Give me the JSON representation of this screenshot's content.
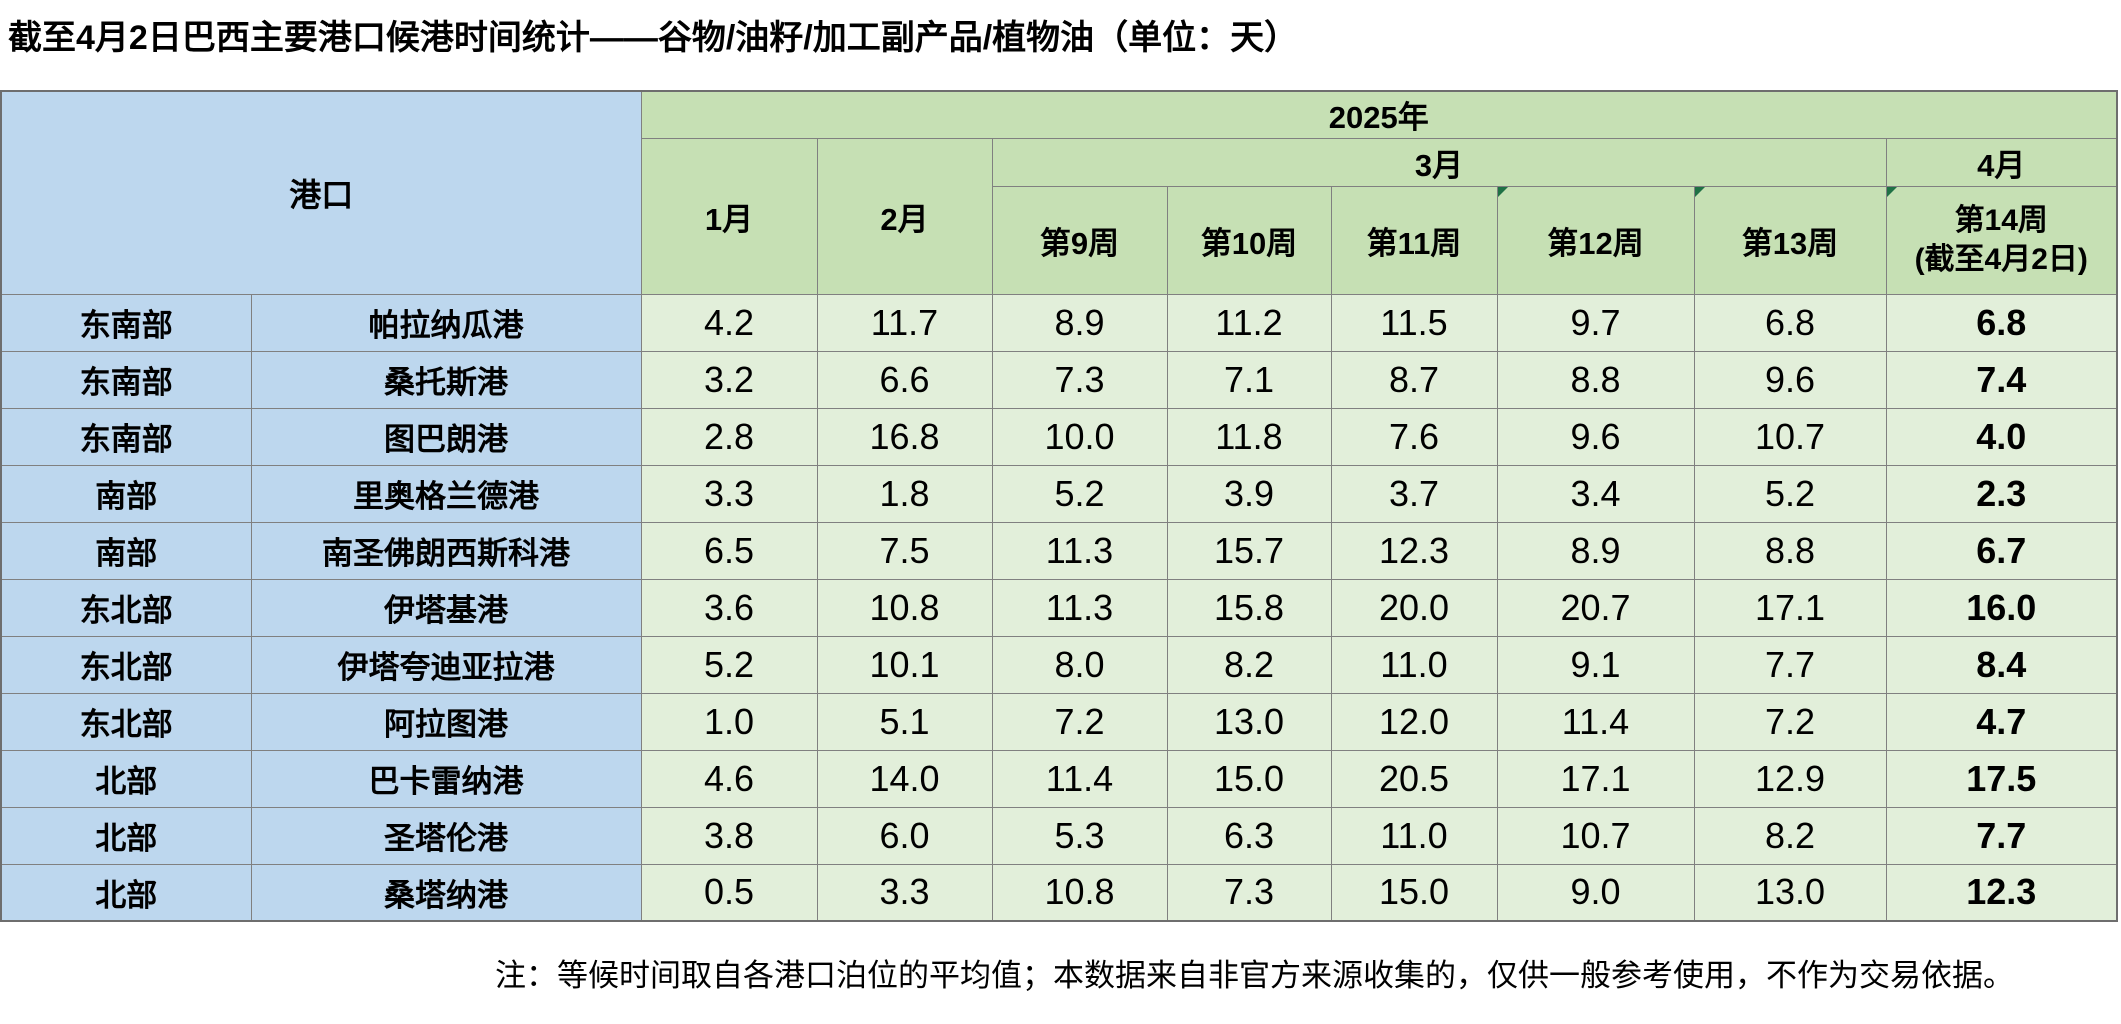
{
  "title": "截至4月2日巴西主要港口候港时间统计——谷物/油籽/加工副产品/植物油（单位：天）",
  "table": {
    "port_header": "港口",
    "year_header": "2025年",
    "months": [
      "1月",
      "2月",
      "3月",
      "4月"
    ],
    "weeks": [
      "第9周",
      "第10周",
      "第11周",
      "第12周",
      "第13周"
    ],
    "week14": {
      "line1": "第14周",
      "line2": "(截至4月2日)"
    },
    "comment_marker_weeks": [
      "第12周",
      "第13周",
      "第14周"
    ]
  },
  "rows": [
    {
      "region": "东南部",
      "port": "帕拉纳瓜港",
      "values": [
        "4.2",
        "11.7",
        "8.9",
        "11.2",
        "11.5",
        "9.7",
        "6.8",
        "6.8"
      ]
    },
    {
      "region": "东南部",
      "port": "桑托斯港",
      "values": [
        "3.2",
        "6.6",
        "7.3",
        "7.1",
        "8.7",
        "8.8",
        "9.6",
        "7.4"
      ]
    },
    {
      "region": "东南部",
      "port": "图巴朗港",
      "values": [
        "2.8",
        "16.8",
        "10.0",
        "11.8",
        "7.6",
        "9.6",
        "10.7",
        "4.0"
      ]
    },
    {
      "region": "南部",
      "port": "里奥格兰德港",
      "values": [
        "3.3",
        "1.8",
        "5.2",
        "3.9",
        "3.7",
        "3.4",
        "5.2",
        "2.3"
      ]
    },
    {
      "region": "南部",
      "port": "南圣佛朗西斯科港",
      "values": [
        "6.5",
        "7.5",
        "11.3",
        "15.7",
        "12.3",
        "8.9",
        "8.8",
        "6.7"
      ]
    },
    {
      "region": "东北部",
      "port": "伊塔基港",
      "values": [
        "3.6",
        "10.8",
        "11.3",
        "15.8",
        "20.0",
        "20.7",
        "17.1",
        "16.0"
      ]
    },
    {
      "region": "东北部",
      "port": "伊塔夸迪亚拉港",
      "values": [
        "5.2",
        "10.1",
        "8.0",
        "8.2",
        "11.0",
        "9.1",
        "7.7",
        "8.4"
      ]
    },
    {
      "region": "东北部",
      "port": "阿拉图港",
      "values": [
        "1.0",
        "5.1",
        "7.2",
        "13.0",
        "12.0",
        "11.4",
        "7.2",
        "4.7"
      ]
    },
    {
      "region": "北部",
      "port": "巴卡雷纳港",
      "values": [
        "4.6",
        "14.0",
        "11.4",
        "15.0",
        "20.5",
        "17.1",
        "12.9",
        "17.5"
      ]
    },
    {
      "region": "北部",
      "port": "圣塔伦港",
      "values": [
        "3.8",
        "6.0",
        "5.3",
        "6.3",
        "11.0",
        "10.7",
        "8.2",
        "7.7"
      ]
    },
    {
      "region": "北部",
      "port": "桑塔纳港",
      "values": [
        "0.5",
        "3.3",
        "10.8",
        "7.3",
        "15.0",
        "9.0",
        "13.0",
        "12.3"
      ]
    }
  ],
  "note": "注：等候时间取自各港口泊位的平均值；本数据来自非官方来源收集的，仅供一般参考使用，不作为交易依据。",
  "colors": {
    "blue_fill": "#BDD7EE",
    "header_green_fill": "#C6E0B4",
    "value_green_fill": "#E2EFDA",
    "grid_border": "#808080",
    "comment_marker_green": "#1F7145"
  }
}
